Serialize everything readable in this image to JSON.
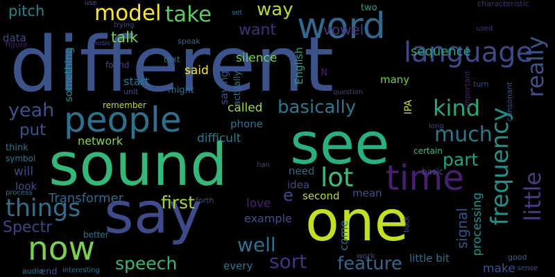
{
  "background": "#000000",
  "words": [
    {
      "text": "different",
      "color": "#3b528b"
    },
    {
      "text": "sound",
      "color": "#35b779"
    },
    {
      "text": "see",
      "color": "#2ab07f"
    },
    {
      "text": "say",
      "color": "#3e4a89"
    },
    {
      "text": "one",
      "color": "#c2df23"
    },
    {
      "text": "word",
      "color": "#31688e"
    },
    {
      "text": "people",
      "color": "#2c728e"
    },
    {
      "text": "time",
      "color": "#481f70"
    },
    {
      "text": "now",
      "color": "#7ad151"
    },
    {
      "text": "language",
      "color": "#3e4989"
    },
    {
      "text": "frequency",
      "color": "#21918c"
    },
    {
      "text": "little",
      "color": "#433e85"
    },
    {
      "text": "really",
      "color": "#3b528b"
    },
    {
      "text": "things",
      "color": "#2c728e"
    },
    {
      "text": "model",
      "color": "#fde725"
    },
    {
      "text": "take",
      "color": "#5ec962"
    },
    {
      "text": "lot",
      "color": "#3fbc73"
    },
    {
      "text": "kind",
      "color": "#22a884"
    },
    {
      "text": "much",
      "color": "#2a788e"
    },
    {
      "text": "yeah",
      "color": "#3b528b"
    },
    {
      "text": "basically",
      "color": "#2a788e"
    },
    {
      "text": "sort",
      "color": "#46327e"
    },
    {
      "text": "feature",
      "color": "#31688e"
    },
    {
      "text": "well",
      "color": "#2c728e"
    },
    {
      "text": "speech",
      "color": "#35b779"
    },
    {
      "text": "first",
      "color": "#a0da39"
    },
    {
      "text": "part",
      "color": "#20a386"
    },
    {
      "text": "put",
      "color": "#3b528b"
    },
    {
      "text": "way",
      "color": "#b5de2b"
    },
    {
      "text": "vowel",
      "color": "#46327e"
    },
    {
      "text": "want",
      "color": "#472d7b"
    },
    {
      "text": "pitch",
      "color": "#26828e"
    },
    {
      "text": "talk",
      "color": "#7ad151"
    },
    {
      "text": "silence",
      "color": "#7ad151"
    },
    {
      "text": "sequence",
      "color": "#22a884"
    },
    {
      "text": "said",
      "color": "#fde725"
    },
    {
      "text": "called",
      "color": "#a0da39"
    },
    {
      "text": "difficult",
      "color": "#2a788e"
    },
    {
      "text": "network",
      "color": "#86d549"
    },
    {
      "text": "Transformer",
      "color": "#31688e"
    },
    {
      "text": "love",
      "color": "#482173"
    },
    {
      "text": "Spectr",
      "color": "#414487"
    },
    {
      "text": "signal",
      "color": "#3b528b"
    },
    {
      "text": "processing",
      "color": "#21918c"
    },
    {
      "text": "example",
      "color": "#3b528b"
    },
    {
      "text": "make",
      "color": "#3b528b"
    },
    {
      "text": "little bit",
      "color": "#2c728e"
    },
    {
      "text": "every",
      "color": "#2a788e"
    },
    {
      "text": "many",
      "color": "#7ad151"
    },
    {
      "text": "start",
      "color": "#2a788e"
    },
    {
      "text": "something",
      "color": "#21918c"
    },
    {
      "text": "data",
      "color": "#3e4a89"
    },
    {
      "text": "English",
      "color": "#20a386"
    },
    {
      "text": "IPA",
      "color": "#c8e020"
    },
    {
      "text": "phone",
      "color": "#2c728e"
    },
    {
      "text": "saying",
      "color": "#3b528b"
    },
    {
      "text": "actually",
      "color": "#2c728e"
    },
    {
      "text": "need",
      "color": "#31688e"
    },
    {
      "text": "idea",
      "color": "#3e4a89"
    },
    {
      "text": "second",
      "color": "#b5de2b"
    },
    {
      "text": "mean",
      "color": "#3b528b"
    },
    {
      "text": "come",
      "color": "#2c728e"
    },
    {
      "text": "will",
      "color": "#3e4a89"
    },
    {
      "text": "look",
      "color": "#3b528b"
    },
    {
      "text": "e",
      "color": "#3e4a89"
    },
    {
      "text": "N",
      "color": "#481f70"
    },
    {
      "text": "found",
      "color": "#3e4a89"
    },
    {
      "text": "might",
      "color": "#2c728e"
    },
    {
      "text": "text",
      "color": "#2c728e"
    },
    {
      "text": "speak",
      "color": "#31688e"
    },
    {
      "text": "remember",
      "color": "#c2df23"
    },
    {
      "text": "unit",
      "color": "#3e4a89"
    },
    {
      "text": "two",
      "color": "#20a386"
    },
    {
      "text": "use",
      "color": "#3b528b"
    },
    {
      "text": "trying",
      "color": "#3e4a89"
    },
    {
      "text": "music",
      "color": "#3e4a89"
    },
    {
      "text": "figure",
      "color": "#481f70"
    },
    {
      "text": "set",
      "color": "#2c728e"
    },
    {
      "text": "characteristic",
      "color": "#472d7b"
    },
    {
      "text": "used",
      "color": "#46327e"
    },
    {
      "text": "question",
      "color": "#433e85"
    },
    {
      "text": "important",
      "color": "#482173"
    },
    {
      "text": "turn",
      "color": "#3e4a89"
    },
    {
      "text": "consonant",
      "color": "#3b528b"
    },
    {
      "text": "long",
      "color": "#3e4a89"
    },
    {
      "text": "certain",
      "color": "#3fbc73"
    },
    {
      "text": "basic",
      "color": "#3e4a89"
    },
    {
      "text": "think",
      "color": "#2c728e"
    },
    {
      "text": "symbol",
      "color": "#2c728e"
    },
    {
      "text": "han",
      "color": "#3e4a89"
    },
    {
      "text": "forth",
      "color": "#3b528b"
    },
    {
      "text": "process",
      "color": "#2c728e"
    },
    {
      "text": "better",
      "color": "#2c728e"
    },
    {
      "text": "back",
      "color": "#3e4a89"
    },
    {
      "text": "good",
      "color": "#31688e"
    },
    {
      "text": "sense",
      "color": "#3b528b"
    },
    {
      "text": "work",
      "color": "#3e4a89"
    },
    {
      "text": "interesting",
      "color": "#2c728e"
    },
    {
      "text": "audio",
      "color": "#2c728e"
    },
    {
      "text": "end",
      "color": "#3e4a89"
    }
  ]
}
